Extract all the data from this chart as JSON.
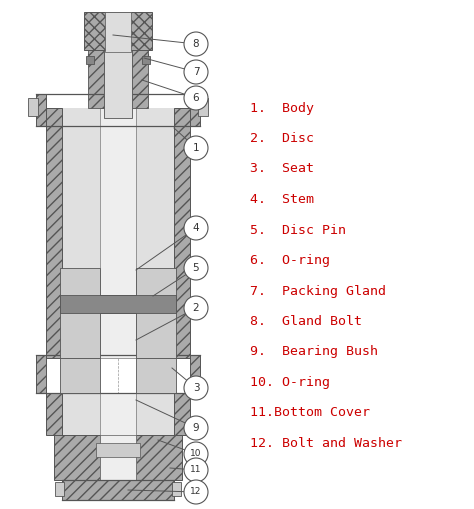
{
  "background_color": "#ffffff",
  "text_color": "#cc0000",
  "diagram_gray": "#aaaaaa",
  "diagram_dark": "#555555",
  "diagram_light": "#dddddd",
  "diagram_hatch": "#888888",
  "circle_fc": "#ffffff",
  "circle_ec": "#555555",
  "font_size_labels": 9.5,
  "labels": [
    "1.  Body",
    "2.  Disc",
    "3.  Seat",
    "4.  Stem",
    "5.  Disc Pin",
    "6.  O-ring",
    "7.  Packing Gland",
    "8.  Gland Bolt",
    "9.  Bearing Bush",
    "10. O-ring",
    "11.Bottom Cover",
    "12. Bolt and Washer"
  ]
}
